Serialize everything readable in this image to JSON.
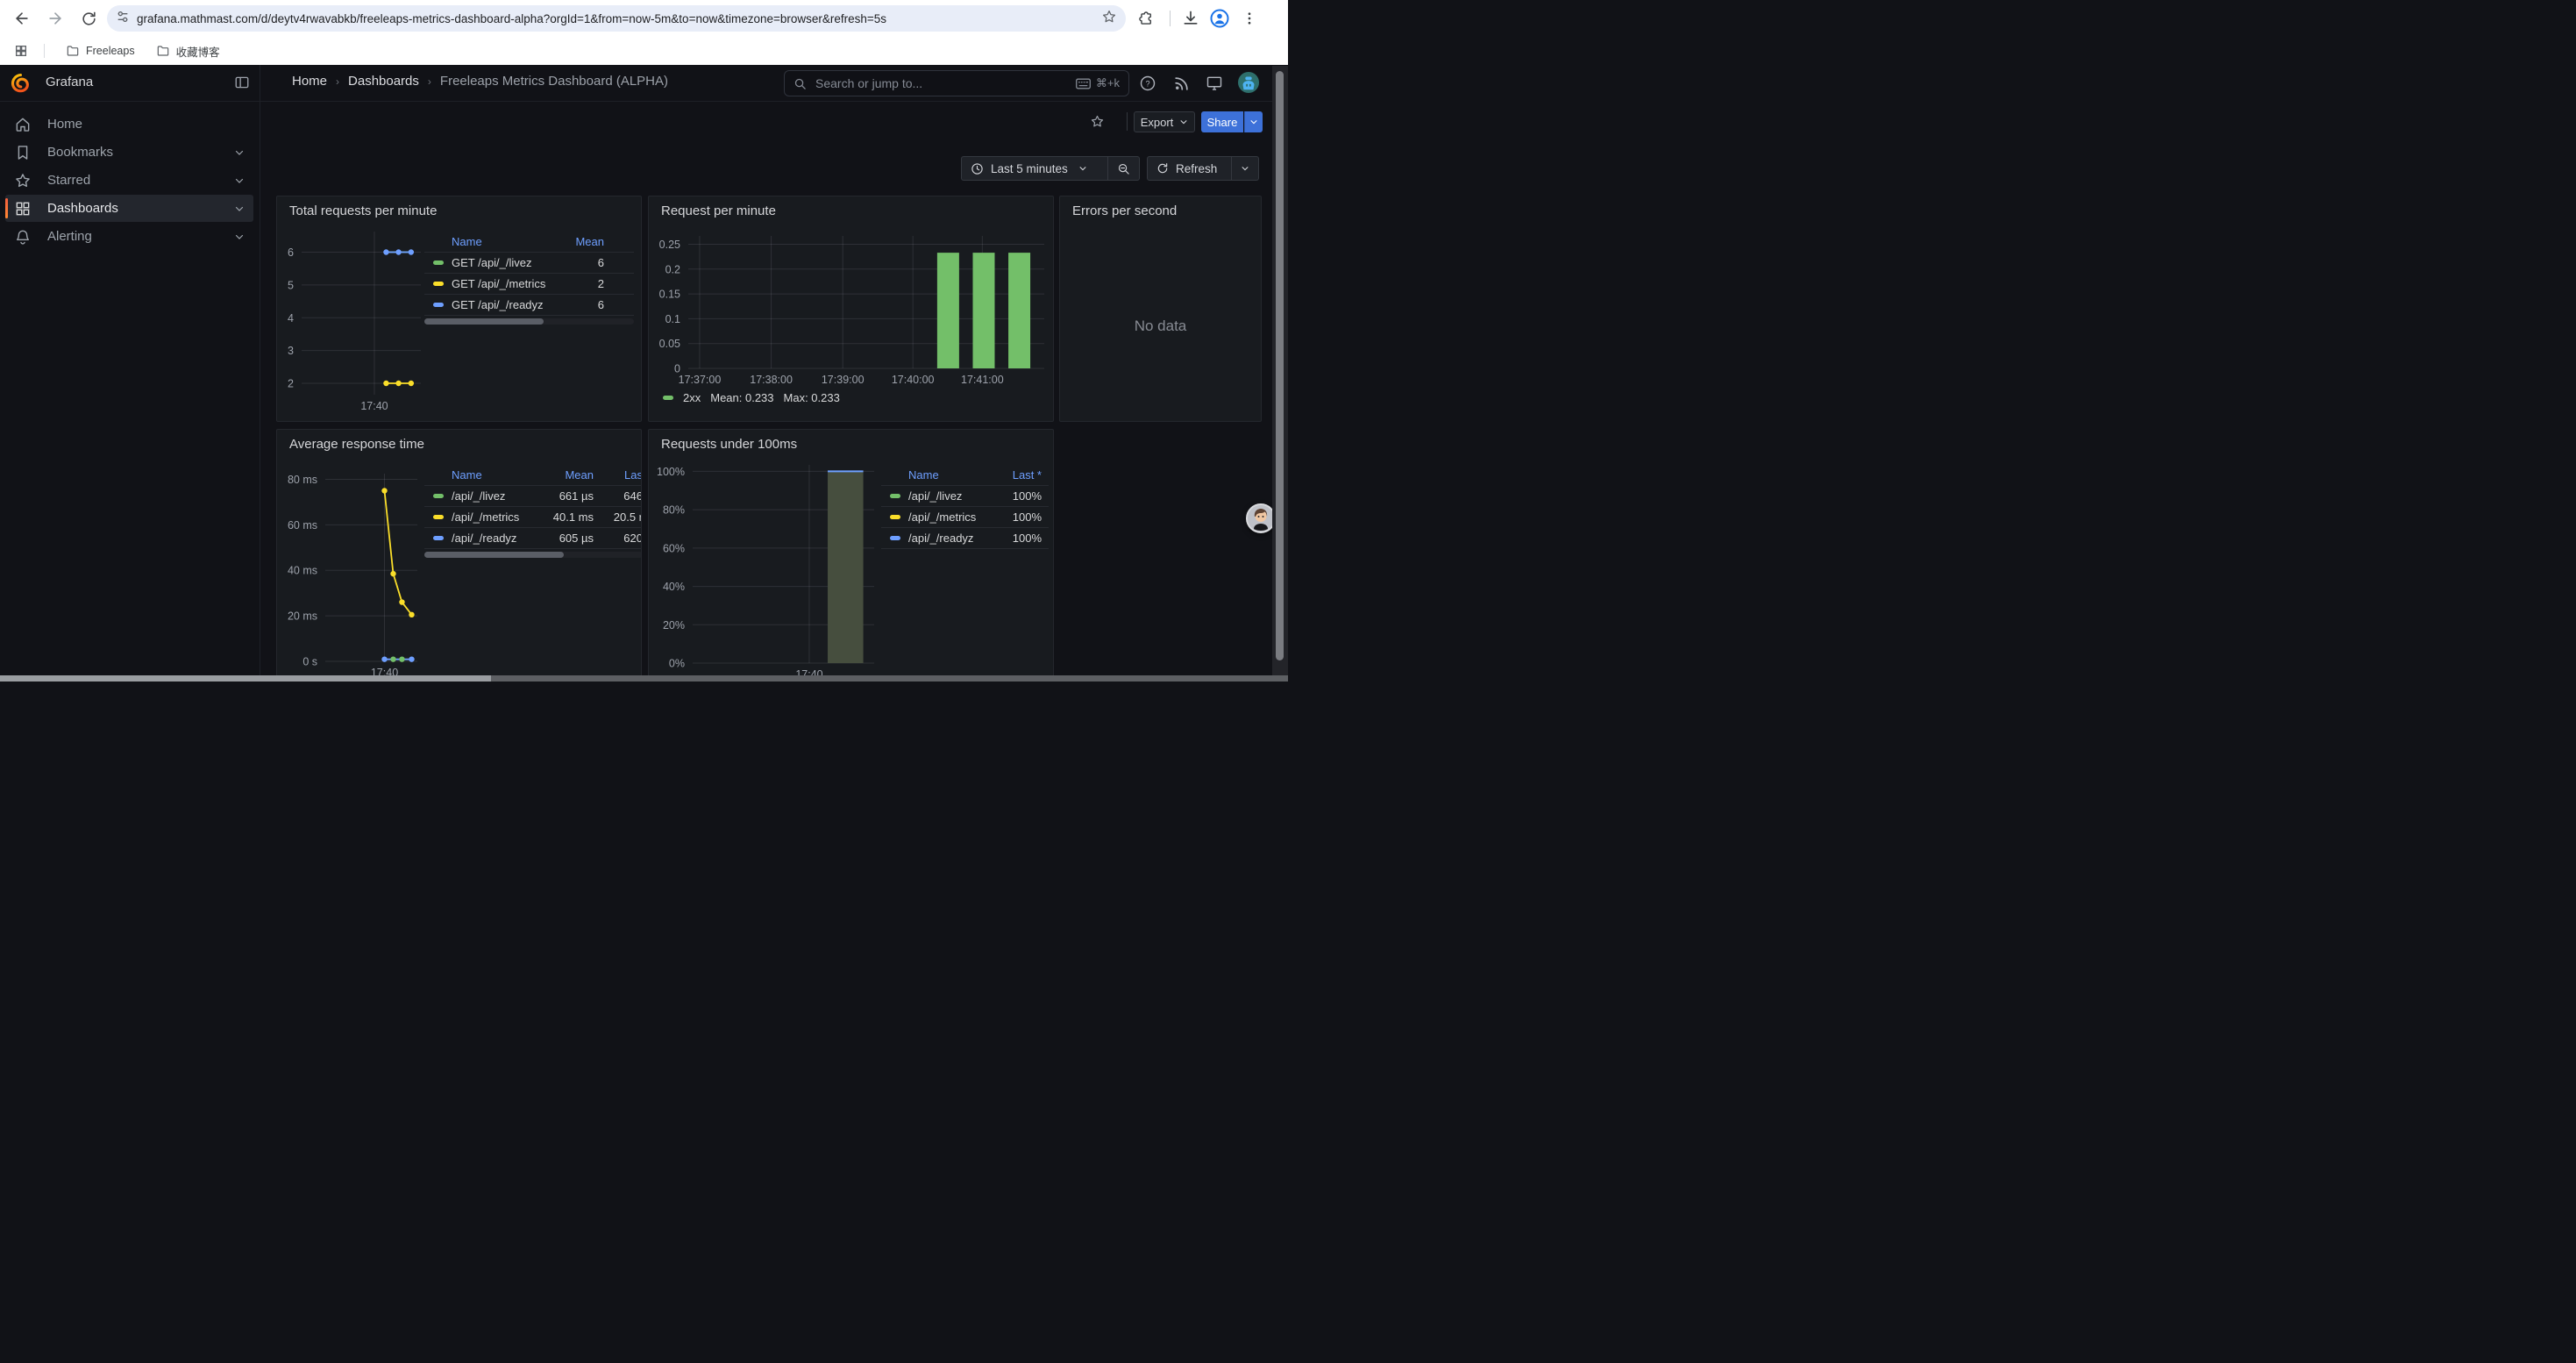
{
  "browser": {
    "url": "grafana.mathmast.com/d/deytv4rwavabkb/freeleaps-metrics-dashboard-alpha?orgId=1&from=now-5m&to=now&timezone=browser&refresh=5s",
    "bookmarks": [
      {
        "label": "Freeleaps"
      },
      {
        "label": "收藏博客"
      }
    ]
  },
  "header": {
    "brand": "Grafana",
    "breadcrumb": {
      "home": "Home",
      "section": "Dashboards",
      "current": "Freeleaps Metrics Dashboard (ALPHA)"
    },
    "search": {
      "placeholder": "Search or jump to...",
      "shortcut": "⌘+k"
    }
  },
  "sidebar": {
    "items": [
      {
        "label": "Home"
      },
      {
        "label": "Bookmarks"
      },
      {
        "label": "Starred"
      },
      {
        "label": "Dashboards"
      },
      {
        "label": "Alerting"
      }
    ]
  },
  "toolbar": {
    "export": "Export",
    "share": "Share"
  },
  "controls": {
    "time_range": "Last 5 minutes",
    "refresh": "Refresh"
  },
  "colors": {
    "green": "#73BF69",
    "yellow": "#FADE2A",
    "blue": "#6E9FFF",
    "accent_blue": "#3D71D9"
  },
  "panels": {
    "p1": {
      "title": "Total requests per minute",
      "legend": {
        "cols": {
          "name": "Name",
          "mean": "Mean"
        },
        "rows": [
          {
            "name": "GET /api/_/livez",
            "mean": "6",
            "color": "#73BF69"
          },
          {
            "name": "GET /api/_/metrics",
            "mean": "2",
            "color": "#FADE2A"
          },
          {
            "name": "GET /api/_/readyz",
            "mean": "6",
            "color": "#6E9FFF"
          }
        ]
      },
      "chart_data": {
        "type": "line",
        "ymin": 1.652,
        "ymax": 6.629,
        "yticks": [
          {
            "v": 6,
            "label": "6"
          },
          {
            "v": 5,
            "label": "5"
          },
          {
            "v": 4,
            "label": "4"
          },
          {
            "v": 3,
            "label": "3"
          },
          {
            "v": 2,
            "label": "2"
          }
        ],
        "xticks": [
          {
            "x": 0.61,
            "label": "17:40"
          }
        ],
        "series": [
          {
            "name": "GET /api/_/livez",
            "color": "#73BF69",
            "points": [
              [
                0.709,
                6
              ],
              [
                0.918,
                6
              ]
            ],
            "dots": []
          },
          {
            "name": "GET /api/_/metrics",
            "color": "#FADE2A",
            "points": [
              [
                0.709,
                2
              ],
              [
                0.813,
                2
              ],
              [
                0.918,
                2
              ]
            ],
            "dots": "all"
          },
          {
            "name": "GET /api/_/readyz",
            "color": "#6E9FFF",
            "points": [
              [
                0.709,
                6
              ],
              [
                0.813,
                6
              ],
              [
                0.918,
                6
              ]
            ],
            "dots": "all"
          }
        ]
      }
    },
    "p2": {
      "title": "Request per minute",
      "legend": {
        "label": "2xx",
        "mean": "Mean: 0.233",
        "max": "Max: 0.233",
        "color": "#73BF69"
      },
      "chart_data": {
        "type": "bar",
        "ymin": 0,
        "ymax": 0.2668,
        "yticks": [
          {
            "v": 0.25,
            "label": "0.25"
          },
          {
            "v": 0.2,
            "label": "0.2"
          },
          {
            "v": 0.15,
            "label": "0.15"
          },
          {
            "v": 0.1,
            "label": "0.1"
          },
          {
            "v": 0.05,
            "label": "0.05"
          },
          {
            "v": 0,
            "label": "0"
          }
        ],
        "xticks": [
          {
            "x": 0.032,
            "label": "17:37:00"
          },
          {
            "x": 0.233,
            "label": "17:38:00"
          },
          {
            "x": 0.434,
            "label": "17:39:00"
          },
          {
            "x": 0.631,
            "label": "17:40:00"
          },
          {
            "x": 0.826,
            "label": "17:41:00"
          }
        ],
        "series": [
          {
            "name": "2xx",
            "type": "bars",
            "color": "#73BF69",
            "barw": 25,
            "points": [
              [
                0.73,
                0.233
              ],
              [
                0.83,
                0.233
              ],
              [
                0.93,
                0.233
              ]
            ]
          }
        ]
      }
    },
    "p3": {
      "title": "Errors per second",
      "no_data": "No data"
    },
    "p4": {
      "title": "Average response time",
      "legend": {
        "cols": {
          "name": "Name",
          "mean": "Mean",
          "last": "Las"
        },
        "rows": [
          {
            "name": "/api/_/livez",
            "mean": "661 µs",
            "last": "646",
            "color": "#73BF69"
          },
          {
            "name": "/api/_/metrics",
            "mean": "40.1 ms",
            "last": "20.5 r",
            "color": "#FADE2A"
          },
          {
            "name": "/api/_/readyz",
            "mean": "605 µs",
            "last": "620",
            "color": "#6E9FFF"
          }
        ]
      },
      "chart_data": {
        "type": "line",
        "ymin": 0,
        "ymax": 82.5,
        "yticks": [
          {
            "v": 80,
            "label": "80 ms"
          },
          {
            "v": 60,
            "label": "60 ms"
          },
          {
            "v": 40,
            "label": "40 ms"
          },
          {
            "v": 20,
            "label": "20 ms"
          },
          {
            "v": 0,
            "label": "0 s"
          }
        ],
        "xticks": [
          {
            "x": 0.643,
            "label": "17:40"
          }
        ],
        "series": [
          {
            "name": "/api/_/metrics",
            "color": "#FADE2A",
            "points": [
              [
                0.643,
                75
              ],
              [
                0.738,
                38.5
              ],
              [
                0.833,
                26
              ],
              [
                0.938,
                20.5
              ]
            ],
            "dots": "all"
          },
          {
            "name": "/api/_/readyz",
            "color": "#6E9FFF",
            "points": [
              [
                0.643,
                0.9
              ],
              [
                0.938,
                0.9
              ]
            ],
            "dots": [
              0.643,
              0.938
            ]
          },
          {
            "name": "/api/_/livez",
            "color": "#73BF69",
            "line": false,
            "points": [
              [
                0.738,
                0.9
              ],
              [
                0.833,
                0.9
              ]
            ],
            "dots": "all"
          }
        ]
      }
    },
    "p5": {
      "title": "Requests under 100ms",
      "legend": {
        "cols": {
          "name": "Name",
          "last": "Last *"
        },
        "rows": [
          {
            "name": "/api/_/livez",
            "last": "100%",
            "color": "#73BF69"
          },
          {
            "name": "/api/_/metrics",
            "last": "100%",
            "color": "#FADE2A"
          },
          {
            "name": "/api/_/readyz",
            "last": "100%",
            "color": "#6E9FFF"
          }
        ]
      },
      "chart_data": {
        "type": "area",
        "ymin": 0,
        "ymax": 103.4,
        "yticks": [
          {
            "v": 100,
            "label": "100%"
          },
          {
            "v": 80,
            "label": "80%"
          },
          {
            "v": 60,
            "label": "60%"
          },
          {
            "v": 40,
            "label": "40%"
          },
          {
            "v": 20,
            "label": "20%"
          },
          {
            "v": 0,
            "label": "0%"
          }
        ],
        "xticks": [
          {
            "x": 0.6425,
            "label": "17:40"
          }
        ],
        "series": [
          {
            "name": "requests under 100ms",
            "type": "area",
            "color": "#6E9FFF",
            "fill": "#464e3e",
            "points": [
              [
                0.744,
                100
              ],
              [
                0.94,
                100
              ]
            ]
          }
        ]
      }
    }
  }
}
